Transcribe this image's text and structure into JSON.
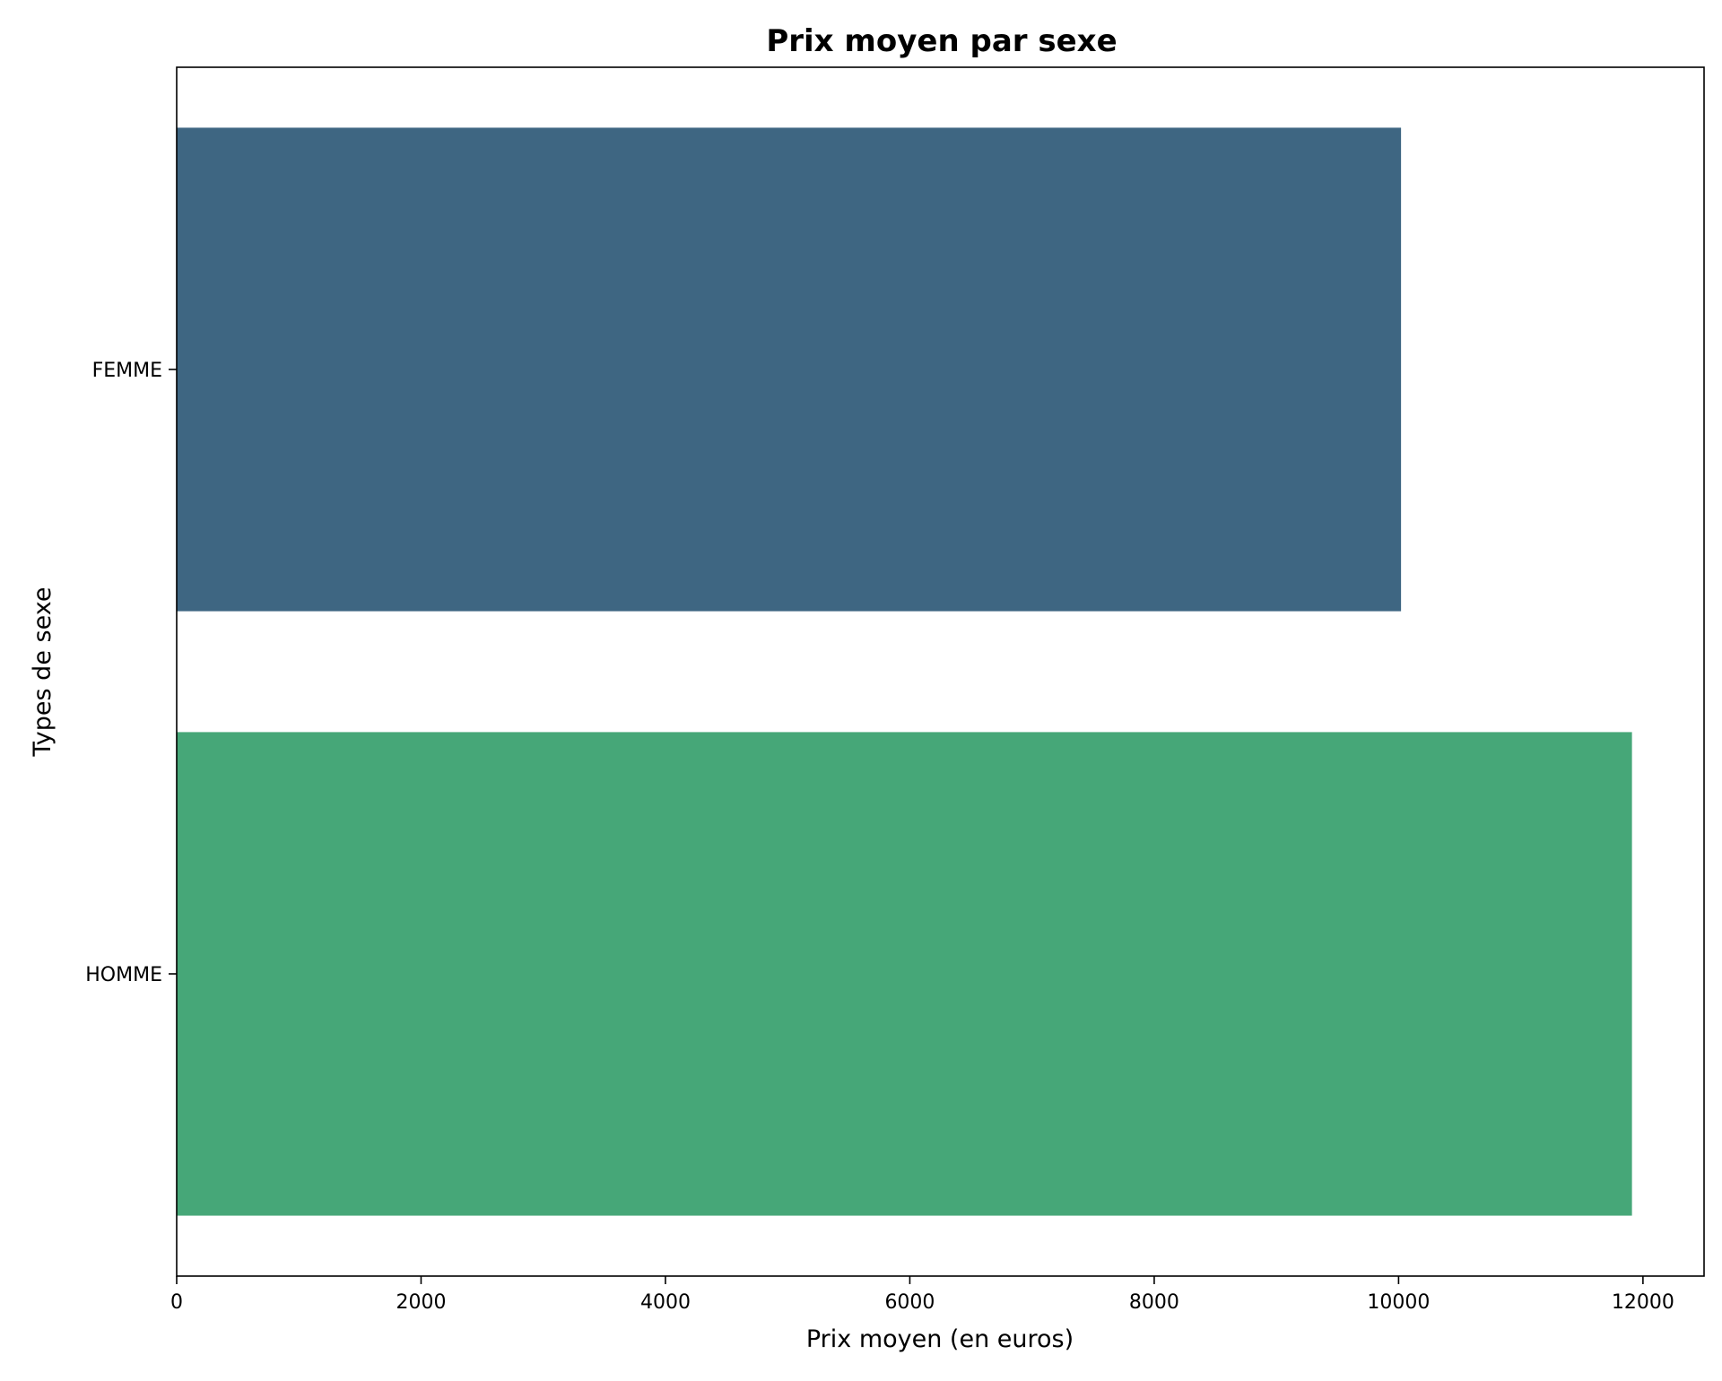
{
  "chart_data": {
    "type": "bar",
    "orientation": "horizontal",
    "title": "Prix moyen par sexe",
    "xlabel": "Prix moyen (en euros)",
    "ylabel": "Types de sexe",
    "categories": [
      "FEMME",
      "HOMME"
    ],
    "values": [
      10020,
      11910
    ],
    "colors": [
      "#3e6682",
      "#46a778"
    ],
    "xlim": [
      0,
      12500
    ],
    "xticks": [
      0,
      2000,
      4000,
      6000,
      8000,
      10000,
      12000
    ],
    "xtick_labels": [
      "0",
      "2000",
      "4000",
      "6000",
      "8000",
      "10000",
      "12000"
    ],
    "grid": false,
    "legend": "none"
  }
}
